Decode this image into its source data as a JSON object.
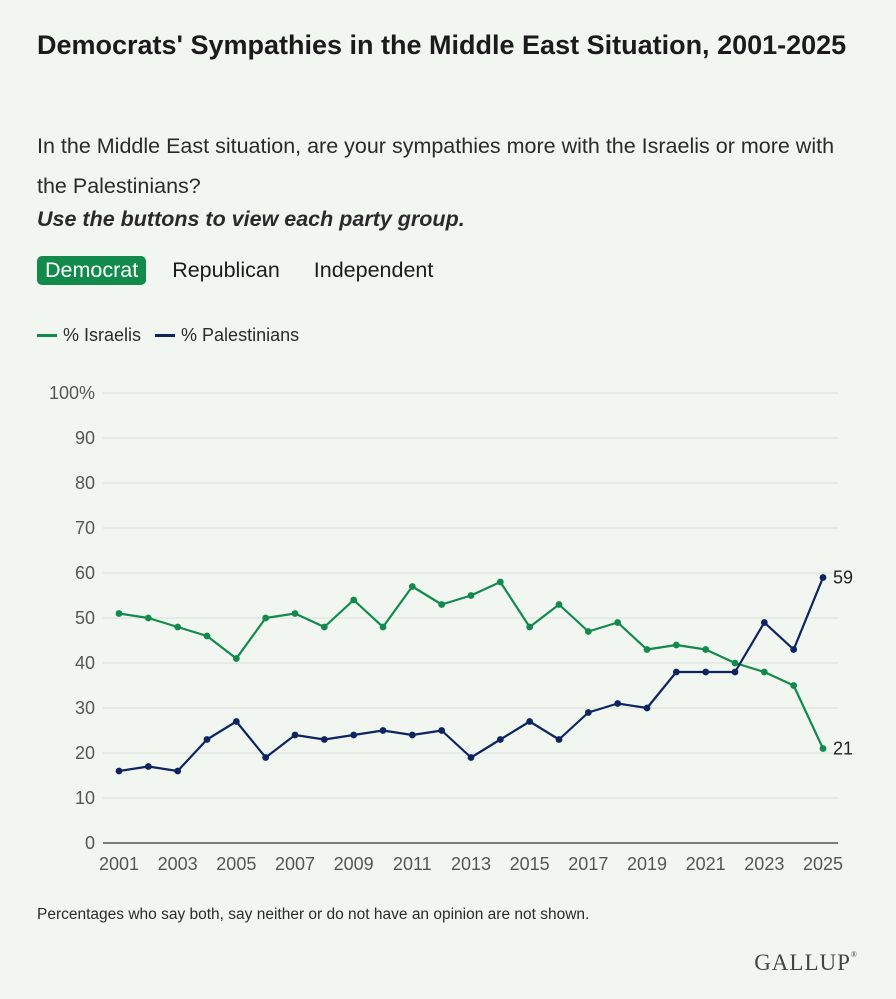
{
  "title": "Democrats' Sympathies in the Middle East Situation, 2001-2025",
  "subtitle": "In the Middle East situation, are your sympathies more with the Israelis or more with the Palestinians?",
  "instruction": "Use the buttons to view each party group.",
  "buttons": [
    {
      "label": "Democrat",
      "active": true
    },
    {
      "label": "Republican",
      "active": false
    },
    {
      "label": "Independent",
      "active": false
    }
  ],
  "footnote": "Percentages who say both, say neither or do not have an opinion are not shown.",
  "logo": "GALLUP",
  "colors": {
    "israelis": "#118a4c",
    "palestinians": "#0d2461",
    "active_button": "#118a4c"
  },
  "chart_data": {
    "type": "line",
    "x": [
      2001,
      2002,
      2003,
      2004,
      2005,
      2006,
      2007,
      2008,
      2009,
      2010,
      2011,
      2012,
      2013,
      2014,
      2015,
      2016,
      2017,
      2018,
      2019,
      2020,
      2021,
      2022,
      2023,
      2024,
      2025
    ],
    "x_tick_labels": [
      "2001",
      "2003",
      "2005",
      "2007",
      "2009",
      "2011",
      "2013",
      "2015",
      "2017",
      "2019",
      "2021",
      "2023",
      "2025"
    ],
    "y_tick_labels": [
      "0",
      "10",
      "20",
      "30",
      "40",
      "50",
      "60",
      "70",
      "80",
      "90",
      "100%"
    ],
    "ylim": [
      0,
      100
    ],
    "grid": true,
    "legend_position": "top-left",
    "series": [
      {
        "name": "% Israelis",
        "values": [
          51,
          50,
          48,
          46,
          41,
          50,
          51,
          48,
          54,
          48,
          57,
          53,
          55,
          58,
          48,
          53,
          47,
          49,
          43,
          44,
          43,
          40,
          38,
          35,
          21
        ],
        "end_label": "21"
      },
      {
        "name": "% Palestinians",
        "values": [
          16,
          17,
          16,
          23,
          27,
          19,
          24,
          23,
          24,
          25,
          24,
          25,
          19,
          23,
          27,
          23,
          29,
          31,
          30,
          38,
          38,
          38,
          49,
          43,
          59
        ],
        "end_label": "59"
      }
    ]
  }
}
